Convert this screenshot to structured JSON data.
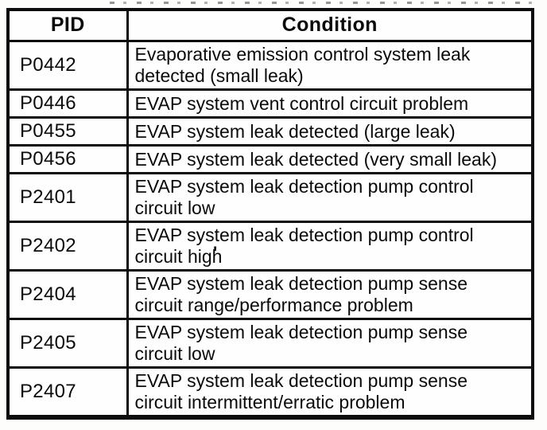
{
  "table": {
    "headers": [
      "PID",
      "Condition"
    ],
    "rows": [
      {
        "pid": "P0442",
        "condition": "Evaporative emission control system leak\ndetected (small leak)"
      },
      {
        "pid": "P0446",
        "condition": "EVAP system vent control circuit problem"
      },
      {
        "pid": "P0455",
        "condition": "EVAP system leak detected (large leak)"
      },
      {
        "pid": "P0456",
        "condition": "EVAP system leak detected (very small leak)"
      },
      {
        "pid": "P2401",
        "condition": "EVAP system leak detection pump control\ncircuit low"
      },
      {
        "pid": "P2402",
        "condition": "EVAP system leak detection pump control\ncircuit high"
      },
      {
        "pid": "P2404",
        "condition": "EVAP system leak detection pump sense\ncircuit range/performance problem"
      },
      {
        "pid": "P2405",
        "condition": "EVAP system leak detection pump sense\ncircuit low"
      },
      {
        "pid": "P2407",
        "condition": "EVAP system leak detection pump sense\ncircuit intermittent/erratic problem"
      }
    ],
    "border_color": "#0d0d0d",
    "text_color": "#0a0a0a",
    "background_color": "#fefefe"
  },
  "artifacts": {
    "stray_mark": "'"
  }
}
